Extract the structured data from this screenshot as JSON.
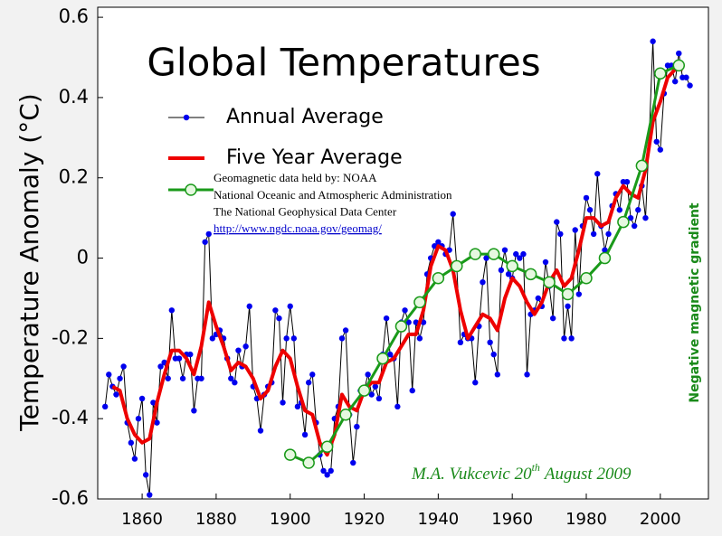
{
  "chart_data": {
    "type": "line",
    "title": "Global Temperatures",
    "y_label": "Temperature Anomaly (°C)",
    "xlim": [
      1848,
      2013
    ],
    "ylim": [
      -0.6,
      0.625
    ],
    "xticks": [
      1860,
      1880,
      1900,
      1920,
      1940,
      1960,
      1980,
      2000
    ],
    "yticks": [
      -0.6,
      -0.4,
      -0.2,
      0,
      0.2,
      0.4,
      0.6
    ],
    "grid": false,
    "series": [
      {
        "name": "Annual Average",
        "color": "#0000ee",
        "line_color": "#000000",
        "marker": "dot",
        "x": [
          1850,
          1851,
          1852,
          1853,
          1854,
          1855,
          1856,
          1857,
          1858,
          1859,
          1860,
          1861,
          1862,
          1863,
          1864,
          1865,
          1866,
          1867,
          1868,
          1869,
          1870,
          1871,
          1872,
          1873,
          1874,
          1875,
          1876,
          1877,
          1878,
          1879,
          1880,
          1881,
          1882,
          1883,
          1884,
          1885,
          1886,
          1887,
          1888,
          1889,
          1890,
          1891,
          1892,
          1893,
          1894,
          1895,
          1896,
          1897,
          1898,
          1899,
          1900,
          1901,
          1902,
          1903,
          1904,
          1905,
          1906,
          1907,
          1908,
          1909,
          1910,
          1911,
          1912,
          1913,
          1914,
          1915,
          1916,
          1917,
          1918,
          1919,
          1920,
          1921,
          1922,
          1923,
          1924,
          1925,
          1926,
          1927,
          1928,
          1929,
          1930,
          1931,
          1932,
          1933,
          1934,
          1935,
          1936,
          1937,
          1938,
          1939,
          1940,
          1941,
          1942,
          1943,
          1944,
          1945,
          1946,
          1947,
          1948,
          1949,
          1950,
          1951,
          1952,
          1953,
          1954,
          1955,
          1956,
          1957,
          1958,
          1959,
          1960,
          1961,
          1962,
          1963,
          1964,
          1965,
          1966,
          1967,
          1968,
          1969,
          1970,
          1971,
          1972,
          1973,
          1974,
          1975,
          1976,
          1977,
          1978,
          1979,
          1980,
          1981,
          1982,
          1983,
          1984,
          1985,
          1986,
          1987,
          1988,
          1989,
          1990,
          1991,
          1992,
          1993,
          1994,
          1995,
          1996,
          1997,
          1998,
          1999,
          2000,
          2001,
          2002,
          2003,
          2004,
          2005,
          2006,
          2007,
          2008
        ],
        "values": [
          -0.37,
          -0.29,
          -0.32,
          -0.34,
          -0.3,
          -0.27,
          -0.41,
          -0.46,
          -0.5,
          -0.4,
          -0.35,
          -0.54,
          -0.59,
          -0.36,
          -0.41,
          -0.27,
          -0.26,
          -0.3,
          -0.13,
          -0.25,
          -0.25,
          -0.3,
          -0.24,
          -0.24,
          -0.38,
          -0.3,
          -0.3,
          0.04,
          0.06,
          -0.2,
          -0.19,
          -0.18,
          -0.2,
          -0.25,
          -0.3,
          -0.31,
          -0.23,
          -0.27,
          -0.22,
          -0.12,
          -0.32,
          -0.35,
          -0.43,
          -0.34,
          -0.32,
          -0.31,
          -0.13,
          -0.15,
          -0.36,
          -0.2,
          -0.12,
          -0.2,
          -0.37,
          -0.36,
          -0.44,
          -0.31,
          -0.29,
          -0.41,
          -0.49,
          -0.53,
          -0.54,
          -0.53,
          -0.4,
          -0.37,
          -0.2,
          -0.18,
          -0.39,
          -0.51,
          -0.42,
          -0.33,
          -0.33,
          -0.29,
          -0.34,
          -0.32,
          -0.35,
          -0.24,
          -0.15,
          -0.24,
          -0.25,
          -0.37,
          -0.16,
          -0.13,
          -0.16,
          -0.33,
          -0.16,
          -0.2,
          -0.16,
          -0.04,
          0.0,
          0.03,
          0.04,
          0.03,
          0.01,
          0.02,
          0.11,
          -0.02,
          -0.21,
          -0.19,
          -0.2,
          -0.2,
          -0.31,
          -0.17,
          -0.06,
          0.0,
          -0.21,
          -0.24,
          -0.29,
          -0.03,
          0.02,
          -0.04,
          -0.05,
          0.01,
          0.0,
          0.01,
          -0.29,
          -0.14,
          -0.13,
          -0.1,
          -0.12,
          -0.01,
          -0.07,
          -0.15,
          0.09,
          0.06,
          -0.2,
          -0.12,
          -0.2,
          0.07,
          -0.09,
          0.08,
          0.15,
          0.12,
          0.06,
          0.21,
          0.08,
          0.02,
          0.06,
          0.13,
          0.16,
          0.12,
          0.19,
          0.19,
          0.1,
          0.08,
          0.12,
          0.18,
          0.1,
          0.3,
          0.54,
          0.29,
          0.27,
          0.41,
          0.48,
          0.48,
          0.44,
          0.51,
          0.45,
          0.45,
          0.43
        ]
      },
      {
        "name": "Five Year Average",
        "color": "#ee0000",
        "marker": "none",
        "x": [
          1852,
          1854,
          1856,
          1858,
          1860,
          1862,
          1864,
          1866,
          1868,
          1870,
          1872,
          1874,
          1876,
          1878,
          1880,
          1882,
          1884,
          1886,
          1888,
          1890,
          1892,
          1894,
          1896,
          1898,
          1900,
          1902,
          1904,
          1906,
          1908,
          1910,
          1912,
          1914,
          1916,
          1918,
          1920,
          1922,
          1924,
          1926,
          1928,
          1930,
          1932,
          1934,
          1936,
          1938,
          1940,
          1942,
          1944,
          1946,
          1948,
          1950,
          1952,
          1954,
          1956,
          1958,
          1960,
          1962,
          1964,
          1966,
          1968,
          1970,
          1972,
          1974,
          1976,
          1978,
          1980,
          1982,
          1984,
          1986,
          1988,
          1990,
          1992,
          1994,
          1996,
          1998,
          2000,
          2002,
          2004,
          2006
        ],
        "values": [
          -0.32,
          -0.33,
          -0.4,
          -0.44,
          -0.46,
          -0.45,
          -0.36,
          -0.29,
          -0.23,
          -0.23,
          -0.25,
          -0.29,
          -0.22,
          -0.11,
          -0.17,
          -0.22,
          -0.28,
          -0.26,
          -0.27,
          -0.3,
          -0.35,
          -0.33,
          -0.27,
          -0.23,
          -0.25,
          -0.32,
          -0.38,
          -0.39,
          -0.46,
          -0.49,
          -0.44,
          -0.34,
          -0.37,
          -0.38,
          -0.33,
          -0.31,
          -0.31,
          -0.26,
          -0.25,
          -0.22,
          -0.19,
          -0.19,
          -0.13,
          -0.02,
          0.03,
          0.02,
          -0.03,
          -0.13,
          -0.2,
          -0.17,
          -0.14,
          -0.15,
          -0.18,
          -0.1,
          -0.05,
          -0.07,
          -0.11,
          -0.14,
          -0.11,
          -0.06,
          -0.03,
          -0.07,
          -0.05,
          0.02,
          0.1,
          0.1,
          0.08,
          0.09,
          0.15,
          0.18,
          0.16,
          0.15,
          0.22,
          0.34,
          0.39,
          0.45,
          0.47,
          0.47
        ]
      },
      {
        "name": "Geomagnetic data held by: NOAA",
        "color": "#1a9a1a",
        "marker": "circle",
        "x": [
          1900,
          1905,
          1910,
          1915,
          1920,
          1925,
          1930,
          1935,
          1940,
          1945,
          1950,
          1955,
          1960,
          1965,
          1970,
          1975,
          1980,
          1985,
          1990,
          1995,
          2000,
          2005
        ],
        "values": [
          -0.49,
          -0.51,
          -0.47,
          -0.39,
          -0.33,
          -0.25,
          -0.17,
          -0.11,
          -0.05,
          -0.02,
          0.01,
          0.01,
          -0.02,
          -0.04,
          -0.06,
          -0.09,
          -0.05,
          0.0,
          0.09,
          0.23,
          0.46,
          0.48
        ]
      }
    ],
    "source_lines": [
      "National Oceanic and Atmospheric Administration",
      "The National Geophysical Data Center",
      "http://www.ngdc.noaa.gov/geomag/"
    ],
    "side_note": "Negative magnetic gradient",
    "signature": {
      "author": "M.A. Vukcevic 20",
      "sup": "th",
      "date": "August 2009"
    }
  }
}
